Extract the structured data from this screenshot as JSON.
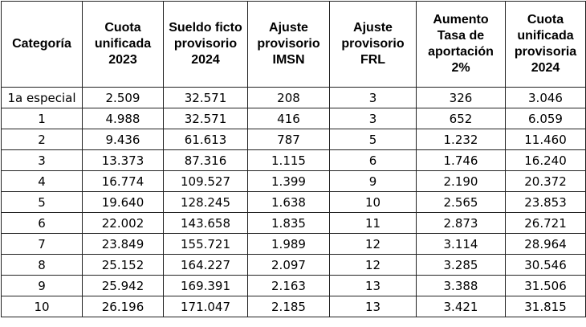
{
  "table": {
    "headers": [
      [
        "Categoría"
      ],
      [
        "Cuota",
        "unificada",
        "2023"
      ],
      [
        "Sueldo ficto",
        "provisorio",
        "2024"
      ],
      [
        "Ajuste",
        "provisorio",
        "IMSN"
      ],
      [
        "Ajuste",
        "provisorio",
        "FRL"
      ],
      [
        "Aumento",
        "Tasa de",
        "aportación",
        "2%"
      ],
      [
        "Cuota",
        "unificada",
        "provisoria",
        "2024"
      ]
    ],
    "rows": [
      [
        "1a especial",
        "2.509",
        "32.571",
        "208",
        "3",
        "326",
        "3.046"
      ],
      [
        "1",
        "4.988",
        "32.571",
        "416",
        "3",
        "652",
        "6.059"
      ],
      [
        "2",
        "9.436",
        "61.613",
        "787",
        "5",
        "1.232",
        "11.460"
      ],
      [
        "3",
        "13.373",
        "87.316",
        "1.115",
        "6",
        "1.746",
        "16.240"
      ],
      [
        "4",
        "16.774",
        "109.527",
        "1.399",
        "9",
        "2.190",
        "20.372"
      ],
      [
        "5",
        "19.640",
        "128.245",
        "1.638",
        "10",
        "2.565",
        "23.853"
      ],
      [
        "6",
        "22.002",
        "143.658",
        "1.835",
        "11",
        "2.873",
        "26.721"
      ],
      [
        "7",
        "23.849",
        "155.721",
        "1.989",
        "12",
        "3.114",
        "28.964"
      ],
      [
        "8",
        "25.152",
        "164.227",
        "2.097",
        "12",
        "3.285",
        "30.546"
      ],
      [
        "9",
        "25.942",
        "169.391",
        "2.163",
        "13",
        "3.388",
        "31.506"
      ],
      [
        "10",
        "26.196",
        "171.047",
        "2.185",
        "13",
        "3.421",
        "31.815"
      ]
    ]
  }
}
